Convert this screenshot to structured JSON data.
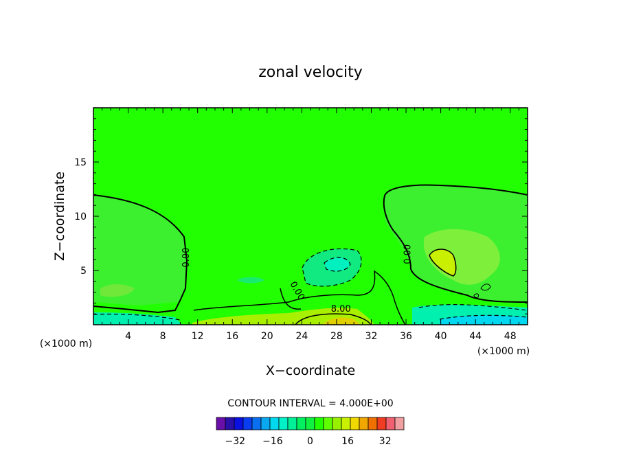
{
  "chart_data": {
    "type": "heatmap",
    "title": "zonal velocity",
    "xlabel": "X−coordinate",
    "ylabel": "Z−coordinate",
    "x_unit": "(×1000 m)",
    "xlim": [
      0,
      50
    ],
    "ylim": [
      0,
      20
    ],
    "x_ticks": [
      4,
      8,
      12,
      16,
      20,
      24,
      28,
      32,
      36,
      40,
      44,
      48
    ],
    "y_ticks": [
      5,
      10,
      15
    ],
    "contour_interval_text": "CONTOUR INTERVAL = 4.000E+00",
    "contour_labels": [
      {
        "text": "0.00",
        "x": 11,
        "z": 6.2
      },
      {
        "text": "0.00",
        "x": 23.2,
        "z": 3.0
      },
      {
        "text": "8.00",
        "x": 28.5,
        "z": 1.2
      },
      {
        "text": "0.00",
        "x": 36.5,
        "z": 6.5
      }
    ],
    "colorbar": {
      "levels": [
        -40,
        -36,
        -32,
        -28,
        -24,
        -20,
        -16,
        -12,
        -8,
        -4,
        0,
        4,
        8,
        12,
        16,
        20,
        24,
        28,
        32,
        36,
        40
      ],
      "tick_values": [
        -32,
        -16,
        0,
        16,
        32
      ],
      "tick_labels": [
        "−32",
        "−16",
        "0",
        "16",
        "32"
      ],
      "colors": [
        "#6a0fa8",
        "#2a0fa8",
        "#0a10e0",
        "#0a3cf0",
        "#0a70f0",
        "#0aa8f0",
        "#00d8f0",
        "#00f0c8",
        "#00f098",
        "#00f060",
        "#10f040",
        "#22ff00",
        "#60ff00",
        "#98f000",
        "#c8f000",
        "#f0d800",
        "#f0a800",
        "#f07000",
        "#f03c20",
        "#f06070",
        "#f0a0a0"
      ]
    }
  }
}
